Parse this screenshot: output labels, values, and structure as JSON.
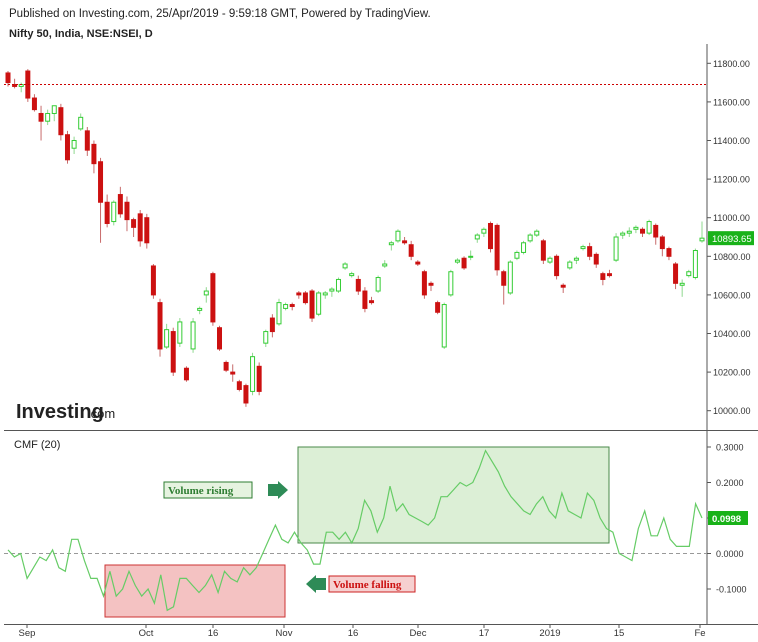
{
  "header": {
    "published": "Published on Investing.com, 25/Apr/2019 - 9:59:18 GMT, Powered by TradingView.",
    "symbol": "Nifty 50, India, NSE:NSEI, D"
  },
  "watermark": {
    "brand": "Investing",
    "suffix": ".com"
  },
  "colors": {
    "up": "#33cc33",
    "down": "#cc1111",
    "cmf_line": "#66cc66",
    "resistance": "#cc0000",
    "last_price_bg": "#19b219",
    "rising_box": "#dcefd6",
    "falling_box": "#f4c2c2",
    "arrow": "#2e8b57"
  },
  "annotations": {
    "volume_rising": "Volume rising",
    "volume_falling": "Volume falling"
  },
  "chart_data": [
    {
      "type": "candlestick",
      "title": "Nifty 50, India, NSE:NSEI, D",
      "ylim": [
        9900,
        11900
      ],
      "yticks": [
        10000,
        10200,
        10400,
        10600,
        10800,
        11000,
        11200,
        11400,
        11600,
        11800
      ],
      "ytick_labels": [
        "10000.00",
        "10200.00",
        "10400.00",
        "10600.00",
        "10800.00",
        "11000.00",
        "11200.00",
        "11400.00",
        "11600.00",
        "11800.00"
      ],
      "xtick_labels": [
        "Sep",
        "Oct",
        "16",
        "Nov",
        "16",
        "Dec",
        "17",
        "2019",
        "15",
        "Fe"
      ],
      "last_price": "10893.65",
      "resistance_level": 11690,
      "candles": [
        {
          "o": 11750,
          "h": 11760,
          "l": 11680,
          "c": 11700
        },
        {
          "o": 11690,
          "h": 11720,
          "l": 11670,
          "c": 11680
        },
        {
          "o": 11680,
          "h": 11700,
          "l": 11650,
          "c": 11690
        },
        {
          "o": 11760,
          "h": 11770,
          "l": 11600,
          "c": 11620
        },
        {
          "o": 11620,
          "h": 11640,
          "l": 11550,
          "c": 11560
        },
        {
          "o": 11540,
          "h": 11580,
          "l": 11400,
          "c": 11500
        },
        {
          "o": 11500,
          "h": 11560,
          "l": 11480,
          "c": 11540
        },
        {
          "o": 11540,
          "h": 11580,
          "l": 11500,
          "c": 11580
        },
        {
          "o": 11570,
          "h": 11590,
          "l": 11400,
          "c": 11430
        },
        {
          "o": 11430,
          "h": 11450,
          "l": 11280,
          "c": 11300
        },
        {
          "o": 11360,
          "h": 11420,
          "l": 11330,
          "c": 11400
        },
        {
          "o": 11460,
          "h": 11540,
          "l": 11450,
          "c": 11520
        },
        {
          "o": 11450,
          "h": 11470,
          "l": 11320,
          "c": 11350
        },
        {
          "o": 11380,
          "h": 11400,
          "l": 11230,
          "c": 11280
        },
        {
          "o": 11290,
          "h": 11310,
          "l": 10870,
          "c": 11080
        },
        {
          "o": 11080,
          "h": 11120,
          "l": 10950,
          "c": 10970
        },
        {
          "o": 10980,
          "h": 11090,
          "l": 10960,
          "c": 11080
        },
        {
          "o": 11120,
          "h": 11160,
          "l": 11000,
          "c": 11020
        },
        {
          "o": 11080,
          "h": 11110,
          "l": 10930,
          "c": 10990
        },
        {
          "o": 10990,
          "h": 11000,
          "l": 10900,
          "c": 10950
        },
        {
          "o": 11020,
          "h": 11040,
          "l": 10850,
          "c": 10880
        },
        {
          "o": 11000,
          "h": 11020,
          "l": 10840,
          "c": 10870
        },
        {
          "o": 10750,
          "h": 10760,
          "l": 10580,
          "c": 10600
        },
        {
          "o": 10560,
          "h": 10580,
          "l": 10280,
          "c": 10320
        },
        {
          "o": 10330,
          "h": 10450,
          "l": 10320,
          "c": 10420
        },
        {
          "o": 10410,
          "h": 10430,
          "l": 10180,
          "c": 10200
        },
        {
          "o": 10350,
          "h": 10480,
          "l": 10330,
          "c": 10460
        },
        {
          "o": 10220,
          "h": 10230,
          "l": 10150,
          "c": 10160
        },
        {
          "o": 10320,
          "h": 10480,
          "l": 10300,
          "c": 10460
        },
        {
          "o": 10520,
          "h": 10540,
          "l": 10500,
          "c": 10530
        },
        {
          "o": 10600,
          "h": 10640,
          "l": 10560,
          "c": 10620
        },
        {
          "o": 10710,
          "h": 10720,
          "l": 10440,
          "c": 10460
        },
        {
          "o": 10430,
          "h": 10440,
          "l": 10310,
          "c": 10320
        },
        {
          "o": 10250,
          "h": 10260,
          "l": 10200,
          "c": 10210
        },
        {
          "o": 10200,
          "h": 10240,
          "l": 10150,
          "c": 10190
        },
        {
          "o": 10150,
          "h": 10160,
          "l": 10100,
          "c": 10110
        },
        {
          "o": 10130,
          "h": 10140,
          "l": 10020,
          "c": 10040
        },
        {
          "o": 10100,
          "h": 10300,
          "l": 10080,
          "c": 10280
        },
        {
          "o": 10230,
          "h": 10250,
          "l": 10080,
          "c": 10100
        },
        {
          "o": 10350,
          "h": 10420,
          "l": 10330,
          "c": 10410
        },
        {
          "o": 10480,
          "h": 10500,
          "l": 10380,
          "c": 10410
        },
        {
          "o": 10450,
          "h": 10580,
          "l": 10440,
          "c": 10560
        },
        {
          "o": 10530,
          "h": 10560,
          "l": 10520,
          "c": 10550
        },
        {
          "o": 10550,
          "h": 10560,
          "l": 10520,
          "c": 10540
        },
        {
          "o": 10610,
          "h": 10620,
          "l": 10580,
          "c": 10600
        },
        {
          "o": 10610,
          "h": 10620,
          "l": 10550,
          "c": 10560
        },
        {
          "o": 10620,
          "h": 10630,
          "l": 10460,
          "c": 10480
        },
        {
          "o": 10500,
          "h": 10620,
          "l": 10490,
          "c": 10610
        },
        {
          "o": 10600,
          "h": 10620,
          "l": 10580,
          "c": 10610
        },
        {
          "o": 10620,
          "h": 10640,
          "l": 10590,
          "c": 10630
        },
        {
          "o": 10620,
          "h": 10690,
          "l": 10610,
          "c": 10680
        },
        {
          "o": 10740,
          "h": 10770,
          "l": 10730,
          "c": 10760
        },
        {
          "o": 10700,
          "h": 10720,
          "l": 10690,
          "c": 10710
        },
        {
          "o": 10680,
          "h": 10700,
          "l": 10600,
          "c": 10620
        },
        {
          "o": 10620,
          "h": 10640,
          "l": 10510,
          "c": 10530
        },
        {
          "o": 10570,
          "h": 10590,
          "l": 10550,
          "c": 10560
        },
        {
          "o": 10620,
          "h": 10700,
          "l": 10610,
          "c": 10690
        },
        {
          "o": 10750,
          "h": 10780,
          "l": 10740,
          "c": 10760
        },
        {
          "o": 10860,
          "h": 10880,
          "l": 10830,
          "c": 10870
        },
        {
          "o": 10880,
          "h": 10940,
          "l": 10870,
          "c": 10930
        },
        {
          "o": 10880,
          "h": 10900,
          "l": 10860,
          "c": 10870
        },
        {
          "o": 10860,
          "h": 10880,
          "l": 10780,
          "c": 10800
        },
        {
          "o": 10770,
          "h": 10780,
          "l": 10750,
          "c": 10760
        },
        {
          "o": 10720,
          "h": 10730,
          "l": 10580,
          "c": 10600
        },
        {
          "o": 10660,
          "h": 10670,
          "l": 10620,
          "c": 10650
        },
        {
          "o": 10560,
          "h": 10570,
          "l": 10500,
          "c": 10510
        },
        {
          "o": 10330,
          "h": 10560,
          "l": 10320,
          "c": 10550
        },
        {
          "o": 10600,
          "h": 10730,
          "l": 10590,
          "c": 10720
        },
        {
          "o": 10770,
          "h": 10790,
          "l": 10760,
          "c": 10780
        },
        {
          "o": 10790,
          "h": 10800,
          "l": 10730,
          "c": 10740
        },
        {
          "o": 10800,
          "h": 10830,
          "l": 10780,
          "c": 10800
        },
        {
          "o": 10890,
          "h": 10920,
          "l": 10870,
          "c": 10910
        },
        {
          "o": 10920,
          "h": 10950,
          "l": 10900,
          "c": 10940
        },
        {
          "o": 10970,
          "h": 10980,
          "l": 10820,
          "c": 10840
        },
        {
          "o": 10960,
          "h": 10970,
          "l": 10700,
          "c": 10730
        },
        {
          "o": 10720,
          "h": 10730,
          "l": 10550,
          "c": 10650
        },
        {
          "o": 10610,
          "h": 10780,
          "l": 10600,
          "c": 10770
        },
        {
          "o": 10790,
          "h": 10830,
          "l": 10780,
          "c": 10820
        },
        {
          "o": 10820,
          "h": 10880,
          "l": 10810,
          "c": 10870
        },
        {
          "o": 10880,
          "h": 10920,
          "l": 10870,
          "c": 10910
        },
        {
          "o": 10910,
          "h": 10940,
          "l": 10900,
          "c": 10930
        },
        {
          "o": 10880,
          "h": 10890,
          "l": 10760,
          "c": 10780
        },
        {
          "o": 10770,
          "h": 10800,
          "l": 10760,
          "c": 10790
        },
        {
          "o": 10800,
          "h": 10810,
          "l": 10680,
          "c": 10700
        },
        {
          "o": 10650,
          "h": 10660,
          "l": 10610,
          "c": 10640
        },
        {
          "o": 10740,
          "h": 10780,
          "l": 10730,
          "c": 10770
        },
        {
          "o": 10780,
          "h": 10800,
          "l": 10760,
          "c": 10790
        },
        {
          "o": 10840,
          "h": 10860,
          "l": 10830,
          "c": 10850
        },
        {
          "o": 10850,
          "h": 10870,
          "l": 10780,
          "c": 10800
        },
        {
          "o": 10810,
          "h": 10820,
          "l": 10740,
          "c": 10760
        },
        {
          "o": 10710,
          "h": 10720,
          "l": 10650,
          "c": 10680
        },
        {
          "o": 10710,
          "h": 10730,
          "l": 10690,
          "c": 10700
        },
        {
          "o": 10780,
          "h": 10920,
          "l": 10770,
          "c": 10900
        },
        {
          "o": 10910,
          "h": 10930,
          "l": 10890,
          "c": 10920
        },
        {
          "o": 10920,
          "h": 10950,
          "l": 10900,
          "c": 10930
        },
        {
          "o": 10940,
          "h": 10960,
          "l": 10920,
          "c": 10950
        },
        {
          "o": 10940,
          "h": 10950,
          "l": 10900,
          "c": 10920
        },
        {
          "o": 10920,
          "h": 10990,
          "l": 10910,
          "c": 10980
        },
        {
          "o": 10960,
          "h": 10970,
          "l": 10860,
          "c": 10900
        },
        {
          "o": 10900,
          "h": 10910,
          "l": 10800,
          "c": 10840
        },
        {
          "o": 10840,
          "h": 10850,
          "l": 10780,
          "c": 10800
        },
        {
          "o": 10760,
          "h": 10770,
          "l": 10630,
          "c": 10660
        },
        {
          "o": 10650,
          "h": 10680,
          "l": 10590,
          "c": 10660
        },
        {
          "o": 10700,
          "h": 10730,
          "l": 10690,
          "c": 10720
        },
        {
          "o": 10690,
          "h": 10840,
          "l": 10680,
          "c": 10830
        },
        {
          "o": 10880,
          "h": 10980,
          "l": 10870,
          "c": 10894
        }
      ]
    },
    {
      "type": "line",
      "title": "CMF (20)",
      "ylim": [
        -0.17,
        0.32
      ],
      "yticks": [
        -0.1,
        0,
        0.1,
        0.2,
        0.3
      ],
      "ytick_labels": [
        "-0.1000",
        "0.0000",
        "0.1000",
        "0.2000",
        "0.3000"
      ],
      "zero_line": 0,
      "last_value": "0.0998",
      "series": [
        {
          "values": [
            0.01,
            -0.01,
            0.0,
            -0.07,
            -0.04,
            -0.01,
            -0.02,
            0.01,
            -0.04,
            -0.05,
            0.04,
            0.04,
            -0.02,
            -0.07,
            -0.07,
            -0.12,
            -0.05,
            -0.12,
            -0.1,
            -0.05,
            -0.09,
            -0.12,
            -0.1,
            -0.14,
            -0.06,
            -0.16,
            -0.15,
            -0.07,
            -0.07,
            -0.09,
            -0.11,
            -0.09,
            -0.06,
            -0.11,
            -0.05,
            -0.07,
            -0.08,
            -0.04,
            -0.06,
            -0.04,
            0.0,
            0.04,
            0.08,
            0.04,
            0.03,
            0.06,
            0.03,
            0.01,
            -0.03,
            -0.03,
            0.06,
            0.06,
            0.04,
            0.06,
            0.03,
            0.07,
            0.15,
            0.12,
            0.06,
            0.1,
            0.19,
            0.12,
            0.14,
            0.11,
            0.1,
            0.09,
            0.08,
            0.1,
            0.16,
            0.16,
            0.18,
            0.2,
            0.19,
            0.2,
            0.24,
            0.29,
            0.26,
            0.23,
            0.19,
            0.16,
            0.14,
            0.12,
            0.11,
            0.14,
            0.16,
            0.12,
            0.1,
            0.17,
            0.12,
            0.11,
            0.1,
            0.17,
            0.15,
            0.1,
            0.07,
            0.06,
            0.0,
            -0.01,
            -0.02,
            0.07,
            0.12,
            0.05,
            0.05,
            0.1,
            0.04,
            0.02,
            0.02,
            0.02,
            0.14,
            0.1
          ]
        }
      ],
      "xtick_labels": [
        "Sep",
        "Oct",
        "16",
        "Nov",
        "16",
        "Dec",
        "17",
        "2019",
        "15",
        "Fe"
      ]
    }
  ]
}
